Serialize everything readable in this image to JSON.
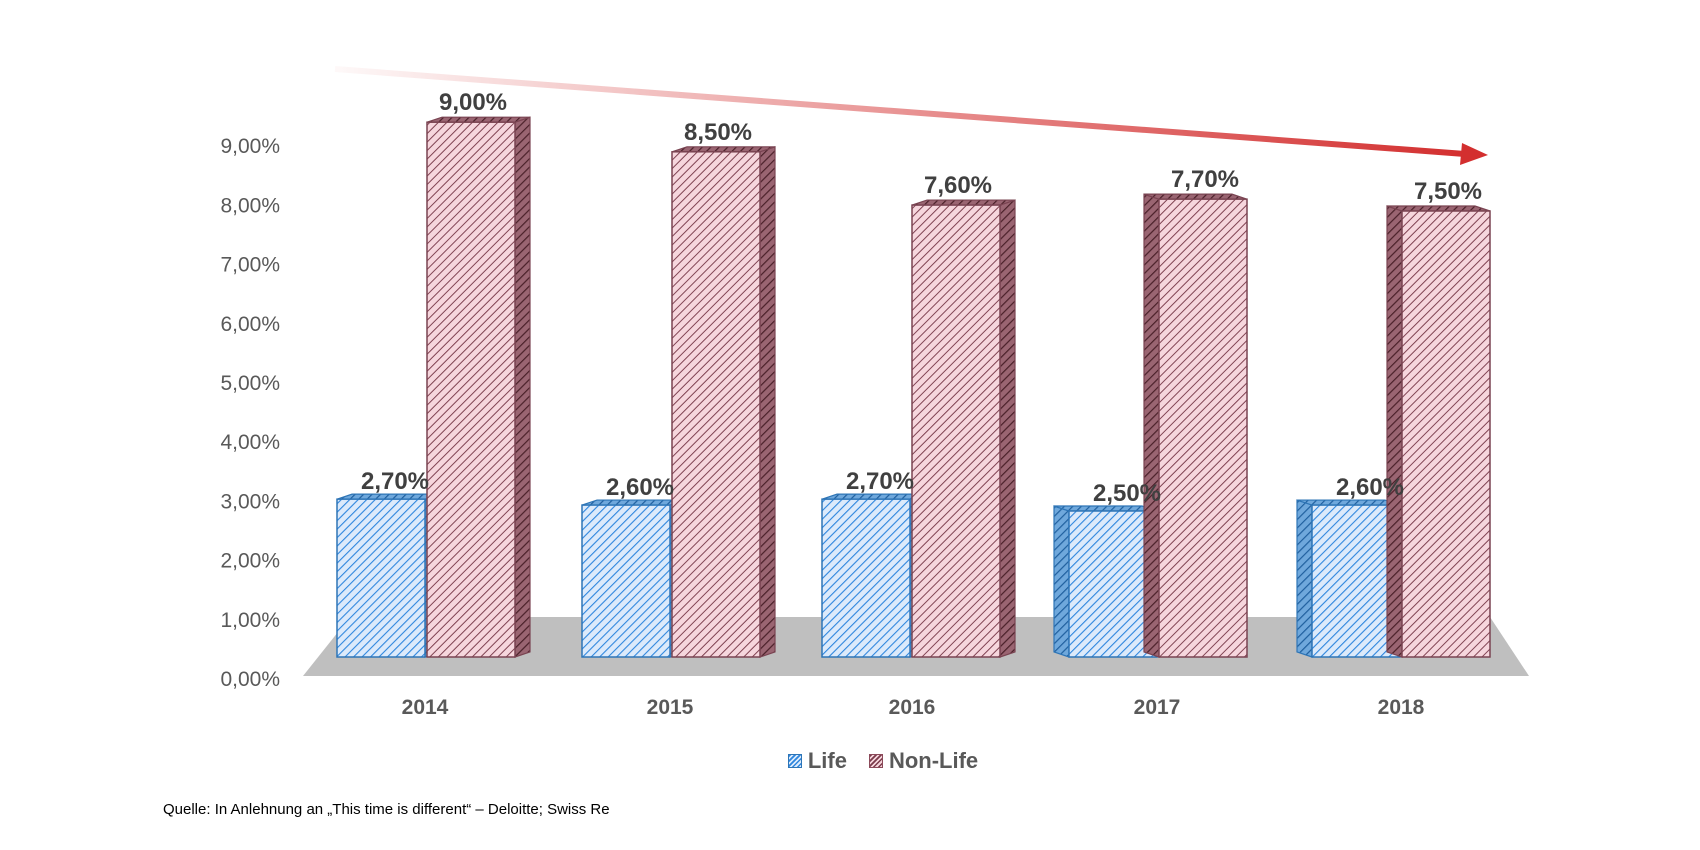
{
  "chart_data": {
    "type": "bar",
    "title": "",
    "categories": [
      "2014",
      "2015",
      "2016",
      "2017",
      "2018"
    ],
    "series": [
      {
        "name": "Life",
        "values": [
          2.7,
          2.6,
          2.7,
          2.5,
          2.6
        ],
        "labels": [
          "2,70%",
          "2,60%",
          "2,70%",
          "2,50%",
          "2,60%"
        ],
        "color": "#2e86de"
      },
      {
        "name": "Non-Life",
        "values": [
          9.0,
          8.5,
          7.6,
          7.7,
          7.5
        ],
        "labels": [
          "9,00%",
          "8,50%",
          "7,60%",
          "7,70%",
          "7,50%"
        ],
        "color": "#c9808f"
      }
    ],
    "yticks": [
      "0,00%",
      "1,00%",
      "2,00%",
      "3,00%",
      "4,00%",
      "5,00%",
      "6,00%",
      "7,00%",
      "8,00%",
      "9,00%"
    ],
    "ylim": [
      0,
      9
    ],
    "legend_position": "bottom",
    "trend_arrow": "decreasing",
    "style": "3d-hatched"
  },
  "legend": {
    "life": "Life",
    "nonlife": "Non-Life"
  },
  "source": "Quelle: In Anlehnung an „This time is different“ – Deloitte; Swiss Re"
}
